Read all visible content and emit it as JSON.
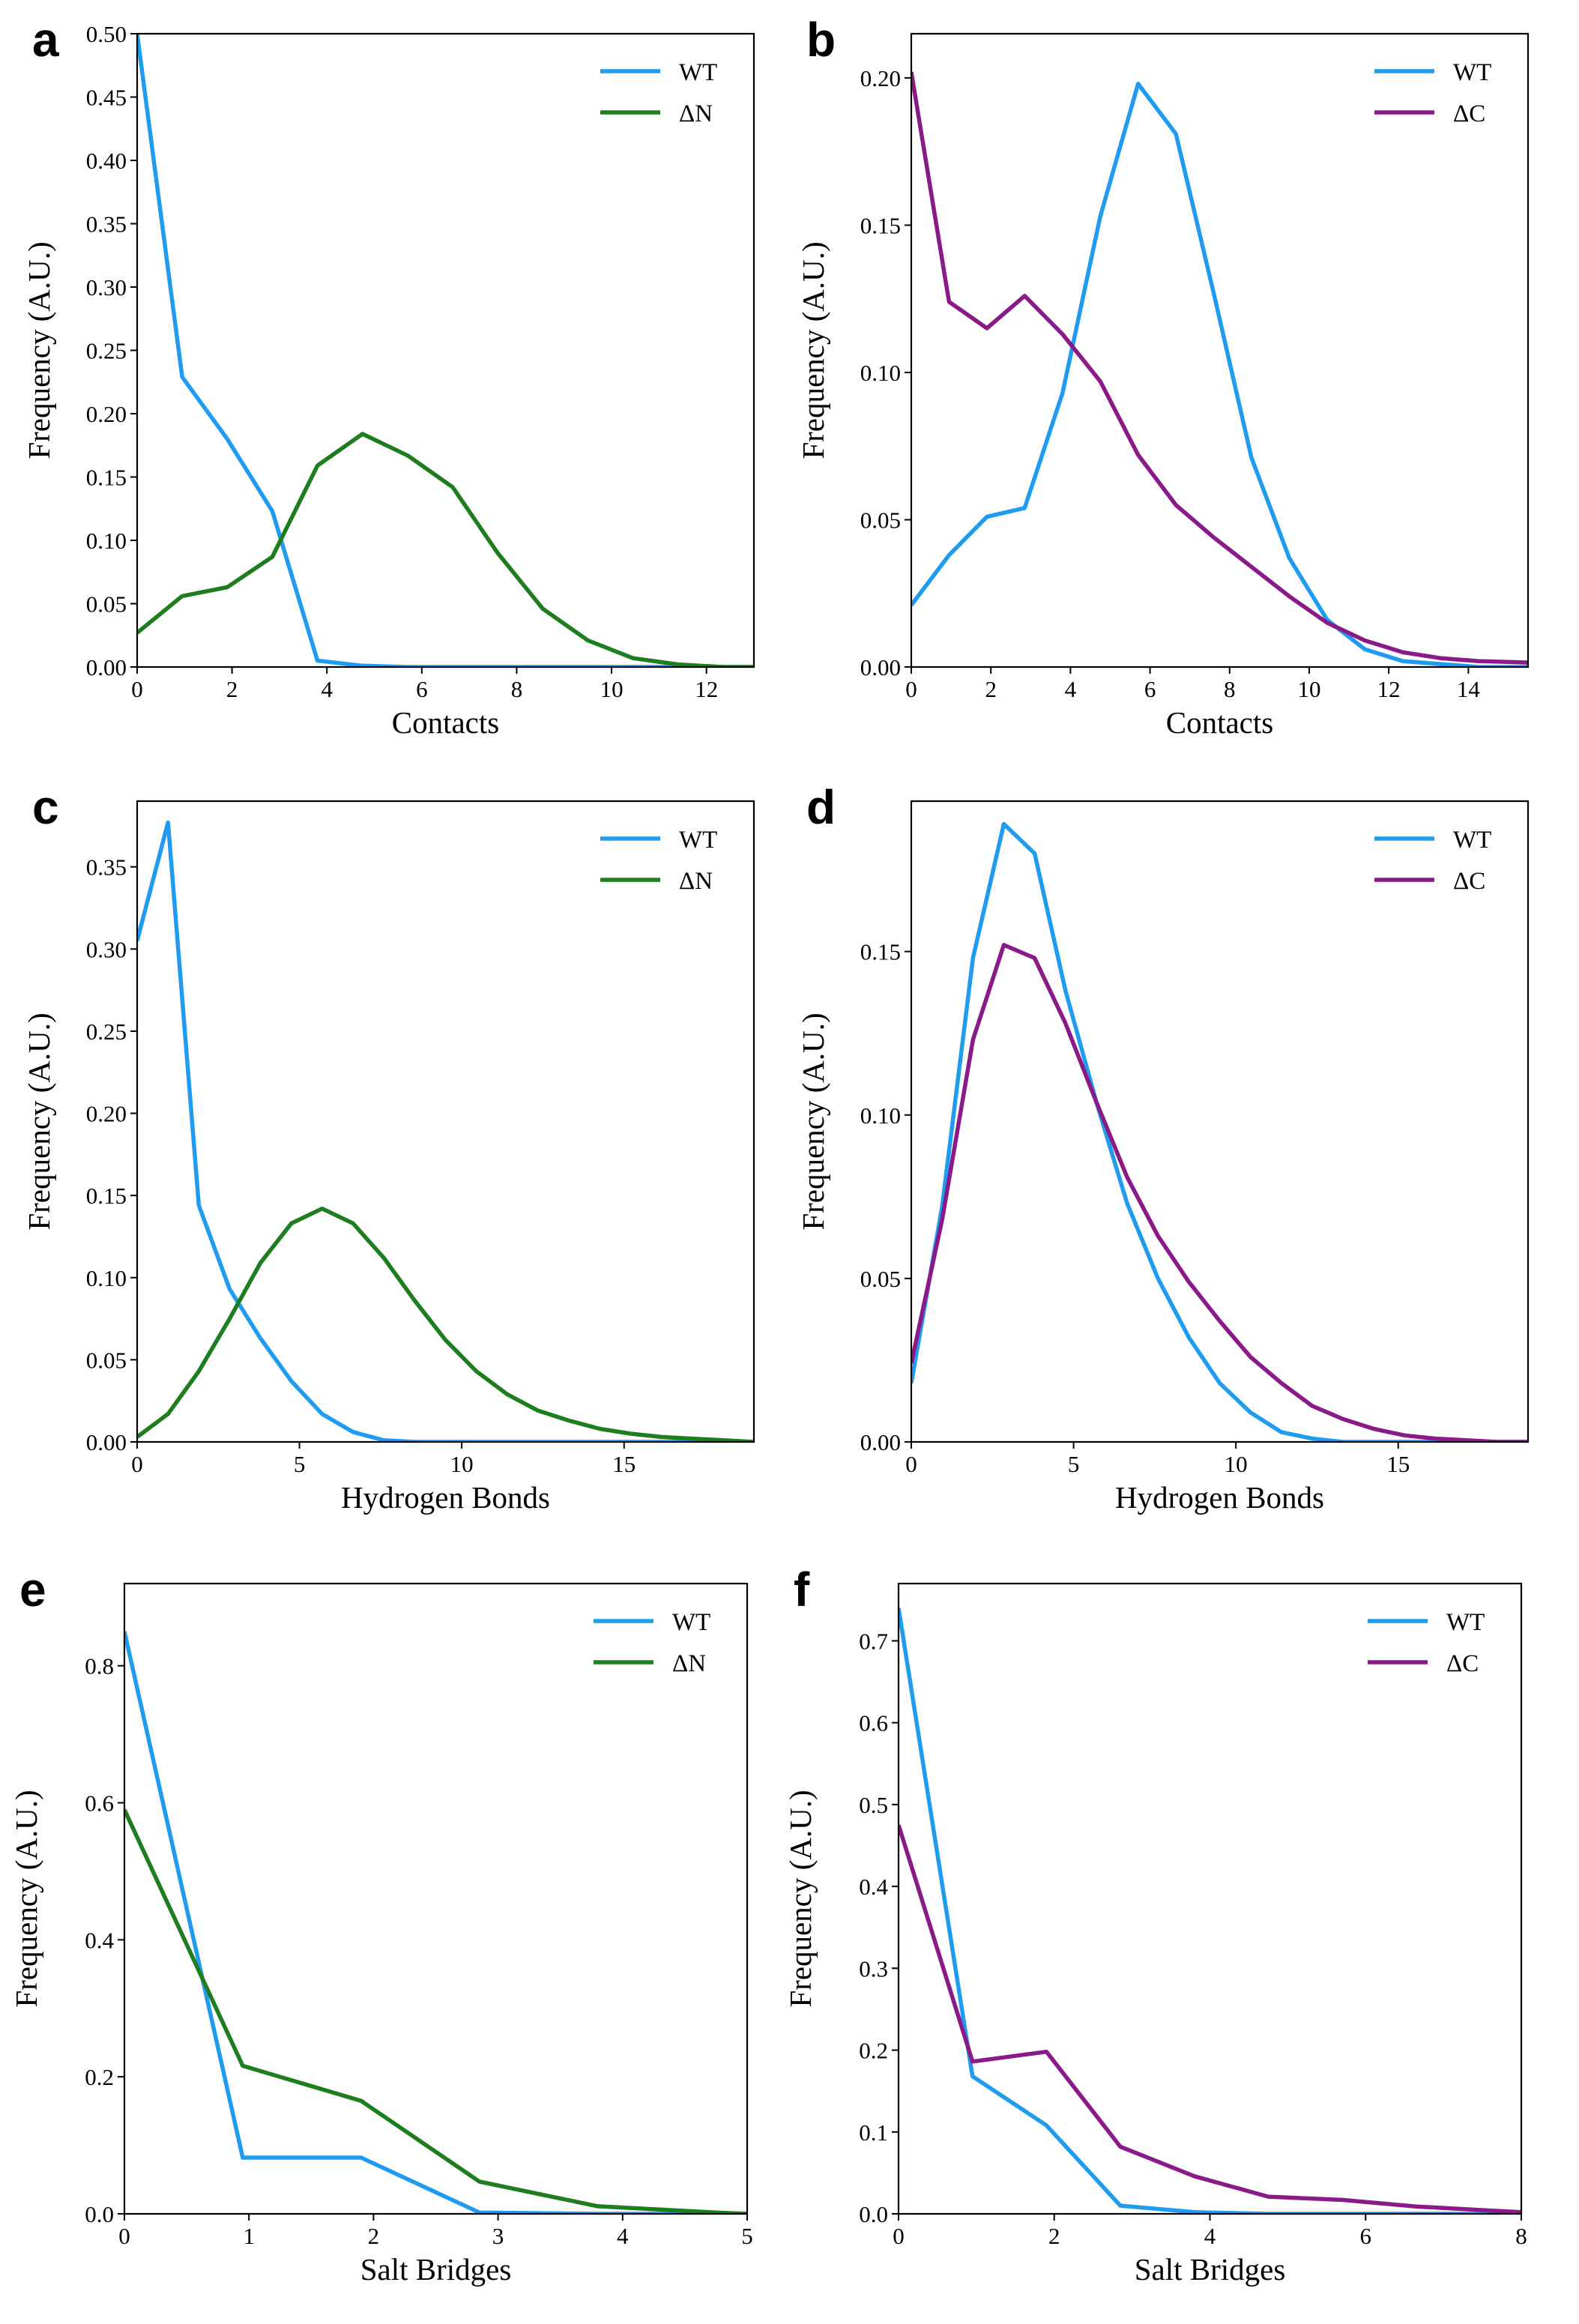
{
  "colors": {
    "WT": "#1f9cf0",
    "dN": "#1e7d1e",
    "dC": "#8b1a89"
  },
  "chart_data": [
    {
      "panel": "a",
      "type": "line",
      "xlabel": "Contacts",
      "ylabel": "Frequency (A.U.)",
      "xlim": [
        0,
        13
      ],
      "ylim": [
        0,
        0.5
      ],
      "xticks": [
        0,
        2,
        4,
        6,
        8,
        10,
        12
      ],
      "xtick_labels": [
        "0",
        "2",
        "4",
        "6",
        "8",
        "10",
        "12"
      ],
      "yticks": [
        0,
        0.05,
        0.1,
        0.15,
        0.2,
        0.25,
        0.3,
        0.35,
        0.4,
        0.45,
        0.5
      ],
      "ytick_labels": [
        "0.00",
        "0.05",
        "0.10",
        "0.15",
        "0.20",
        "0.25",
        "0.30",
        "0.35",
        "0.40",
        "0.45",
        "0.50"
      ],
      "legend": "top-right",
      "series": [
        {
          "name": "WT",
          "color_key": "WT",
          "x": [
            0,
            0.95,
            1.9,
            2.85,
            3.8,
            4.75,
            5.7,
            6.65,
            7.6,
            8.55,
            9.5,
            10.45,
            11.4,
            12.35,
            13
          ],
          "y": [
            0.5,
            0.229,
            0.18,
            0.123,
            0.005,
            0.001,
            0,
            0,
            0,
            0,
            0,
            0,
            0,
            0,
            0
          ]
        },
        {
          "name": "ΔN",
          "color_key": "dN",
          "x": [
            0,
            0.95,
            1.9,
            2.85,
            3.8,
            4.75,
            5.7,
            6.65,
            7.6,
            8.55,
            9.5,
            10.45,
            11.4,
            12.35,
            13
          ],
          "y": [
            0.027,
            0.056,
            0.063,
            0.087,
            0.159,
            0.184,
            0.167,
            0.142,
            0.09,
            0.046,
            0.021,
            0.007,
            0.002,
            0,
            0
          ]
        }
      ]
    },
    {
      "panel": "b",
      "type": "line",
      "xlabel": "Contacts",
      "ylabel": "Frequency (A.U.)",
      "xlim": [
        0,
        15.5
      ],
      "ylim": [
        0,
        0.215
      ],
      "xticks": [
        0,
        2,
        4,
        6,
        8,
        10,
        12,
        14
      ],
      "xtick_labels": [
        "0",
        "2",
        "4",
        "6",
        "8",
        "10",
        "12",
        "14"
      ],
      "yticks": [
        0,
        0.05,
        0.1,
        0.15,
        0.2
      ],
      "ytick_labels": [
        "0.00",
        "0.05",
        "0.10",
        "0.15",
        "0.20"
      ],
      "legend": "top-right",
      "series": [
        {
          "name": "WT",
          "color_key": "WT",
          "x": [
            0,
            0.95,
            1.9,
            2.85,
            3.8,
            4.75,
            5.7,
            6.65,
            7.6,
            8.55,
            9.5,
            10.45,
            11.4,
            12.35,
            13.3,
            14.25,
            15.5
          ],
          "y": [
            0.021,
            0.038,
            0.051,
            0.054,
            0.093,
            0.153,
            0.198,
            0.181,
            0.127,
            0.071,
            0.037,
            0.016,
            0.006,
            0.002,
            0.001,
            0,
            0
          ]
        },
        {
          "name": "ΔC",
          "color_key": "dC",
          "x": [
            0,
            0.95,
            1.9,
            2.85,
            3.8,
            4.75,
            5.7,
            6.65,
            7.6,
            8.55,
            9.5,
            10.45,
            11.4,
            12.35,
            13.3,
            14.25,
            15.5
          ],
          "y": [
            0.202,
            0.124,
            0.115,
            0.126,
            0.113,
            0.097,
            0.072,
            0.055,
            0.044,
            0.034,
            0.024,
            0.015,
            0.009,
            0.005,
            0.003,
            0.002,
            0.0015
          ]
        }
      ]
    },
    {
      "panel": "c",
      "type": "line",
      "xlabel": "Hydrogen Bonds",
      "ylabel": "Frequency (A.U.)",
      "xlim": [
        0,
        19
      ],
      "ylim": [
        0,
        0.39
      ],
      "xticks": [
        0,
        5,
        10,
        15
      ],
      "xtick_labels": [
        "0",
        "5",
        "10",
        "15"
      ],
      "yticks": [
        0,
        0.05,
        0.1,
        0.15,
        0.2,
        0.25,
        0.3,
        0.35
      ],
      "ytick_labels": [
        "0.00",
        "0.05",
        "0.10",
        "0.15",
        "0.20",
        "0.25",
        "0.30",
        "0.35"
      ],
      "legend": "top-right",
      "series": [
        {
          "name": "WT",
          "color_key": "WT",
          "x": [
            0,
            0.95,
            1.9,
            2.85,
            3.8,
            4.75,
            5.7,
            6.65,
            7.6,
            8.55,
            9.5,
            10.45,
            11.4,
            12.35,
            13.3,
            14.25,
            15.2,
            16.15,
            17.1,
            18.05,
            19
          ],
          "y": [
            0.305,
            0.377,
            0.144,
            0.093,
            0.063,
            0.037,
            0.017,
            0.006,
            0.001,
            0,
            0,
            0,
            0,
            0,
            0,
            0,
            0,
            0,
            0,
            0,
            0
          ]
        },
        {
          "name": "ΔN",
          "color_key": "dN",
          "x": [
            0,
            0.95,
            1.9,
            2.85,
            3.8,
            4.75,
            5.7,
            6.65,
            7.6,
            8.55,
            9.5,
            10.45,
            11.4,
            12.35,
            13.3,
            14.25,
            15.2,
            16.15,
            17.1,
            18.05,
            19
          ],
          "y": [
            0.003,
            0.017,
            0.043,
            0.075,
            0.109,
            0.133,
            0.142,
            0.133,
            0.112,
            0.086,
            0.062,
            0.043,
            0.029,
            0.019,
            0.013,
            0.008,
            0.005,
            0.003,
            0.002,
            0.001,
            0
          ]
        }
      ]
    },
    {
      "panel": "d",
      "type": "line",
      "xlabel": "Hydrogen Bonds",
      "ylabel": "Frequency (A.U.)",
      "xlim": [
        0,
        19
      ],
      "ylim": [
        0,
        0.196
      ],
      "xticks": [
        0,
        5,
        10,
        15
      ],
      "xtick_labels": [
        "0",
        "5",
        "10",
        "15"
      ],
      "yticks": [
        0,
        0.05,
        0.1,
        0.15
      ],
      "ytick_labels": [
        "0.00",
        "0.05",
        "0.10",
        "0.15"
      ],
      "legend": "top-right",
      "series": [
        {
          "name": "WT",
          "color_key": "WT",
          "x": [
            0,
            0.95,
            1.9,
            2.85,
            3.8,
            4.75,
            5.7,
            6.65,
            7.6,
            8.55,
            9.5,
            10.45,
            11.4,
            12.35,
            13.3,
            14.25,
            15.2,
            16.15,
            17.1,
            18.05,
            19
          ],
          "y": [
            0.018,
            0.072,
            0.148,
            0.189,
            0.18,
            0.138,
            0.104,
            0.073,
            0.05,
            0.032,
            0.018,
            0.009,
            0.003,
            0.001,
            0,
            0,
            0,
            0,
            0,
            0,
            0
          ]
        },
        {
          "name": "ΔC",
          "color_key": "dC",
          "x": [
            0,
            0.95,
            1.9,
            2.85,
            3.8,
            4.75,
            5.7,
            6.65,
            7.6,
            8.55,
            9.5,
            10.45,
            11.4,
            12.35,
            13.3,
            14.25,
            15.2,
            16.15,
            17.1,
            18.05,
            19
          ],
          "y": [
            0.024,
            0.068,
            0.123,
            0.152,
            0.148,
            0.128,
            0.104,
            0.081,
            0.063,
            0.049,
            0.037,
            0.026,
            0.018,
            0.011,
            0.007,
            0.004,
            0.002,
            0.001,
            0.0005,
            0,
            0
          ]
        }
      ]
    },
    {
      "panel": "e",
      "type": "line",
      "xlabel": "Salt Bridges",
      "ylabel": "Frequency (A.U.)",
      "xlim": [
        0,
        5
      ],
      "ylim": [
        0,
        0.92
      ],
      "xticks": [
        0,
        1,
        2,
        3,
        4,
        5
      ],
      "xtick_labels": [
        "0",
        "1",
        "2",
        "3",
        "4",
        "5"
      ],
      "yticks": [
        0,
        0.2,
        0.4,
        0.6,
        0.8
      ],
      "ytick_labels": [
        "0.0",
        "0.2",
        "0.4",
        "0.6",
        "0.8"
      ],
      "legend": "top-right",
      "series": [
        {
          "name": "WT",
          "color_key": "WT",
          "x": [
            0,
            0.95,
            1.9,
            2.85,
            3.8,
            4.75,
            5
          ],
          "y": [
            0.85,
            0.082,
            0.082,
            0.002,
            0,
            0,
            0
          ]
        },
        {
          "name": "ΔN",
          "color_key": "dN",
          "x": [
            0,
            0.95,
            1.9,
            2.85,
            3.8,
            4.75,
            5
          ],
          "y": [
            0.59,
            0.216,
            0.165,
            0.047,
            0.011,
            0.002,
            0
          ]
        }
      ]
    },
    {
      "panel": "f",
      "type": "line",
      "xlabel": "Salt Bridges",
      "ylabel": "Frequency (A.U.)",
      "xlim": [
        0,
        8
      ],
      "ylim": [
        0,
        0.77
      ],
      "xticks": [
        0,
        2,
        4,
        6,
        8
      ],
      "xtick_labels": [
        "0",
        "2",
        "4",
        "6",
        "8"
      ],
      "yticks": [
        0,
        0.1,
        0.2,
        0.3,
        0.4,
        0.5,
        0.6,
        0.7
      ],
      "ytick_labels": [
        "0.0",
        "0.1",
        "0.2",
        "0.3",
        "0.4",
        "0.5",
        "0.6",
        "0.7"
      ],
      "legend": "top-right",
      "series": [
        {
          "name": "WT",
          "color_key": "WT",
          "x": [
            0,
            0.95,
            1.9,
            2.85,
            3.8,
            4.75,
            5.7,
            6.65,
            7.6,
            8
          ],
          "y": [
            0.74,
            0.168,
            0.108,
            0.01,
            0.002,
            0,
            0,
            0,
            0,
            0
          ]
        },
        {
          "name": "ΔC",
          "color_key": "dC",
          "x": [
            0,
            0.95,
            1.9,
            2.85,
            3.8,
            4.75,
            5.7,
            6.65,
            7.6,
            8
          ],
          "y": [
            0.475,
            0.186,
            0.198,
            0.082,
            0.046,
            0.021,
            0.017,
            0.009,
            0.004,
            0.002
          ]
        }
      ]
    }
  ]
}
